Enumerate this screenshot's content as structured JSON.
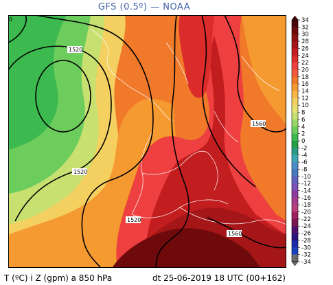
{
  "title": "GFS (0.5º) — NOAA",
  "corner_label": "0",
  "footer": {
    "variables": "T (ºC) i Z (gpm) a 850 hPa",
    "valid_time": "dt 25-06-2019 18 UTC (00+162)"
  },
  "isohypse_labels": [
    "1520",
    "1520",
    "1520",
    "1560",
    "1560"
  ],
  "colorbar": {
    "unit": "ºC",
    "ticks": [
      "34",
      "32",
      "30",
      "28",
      "26",
      "24",
      "22",
      "20",
      "18",
      "16",
      "14",
      "12",
      "10",
      "8",
      "6",
      "4",
      "2",
      "0",
      "-2",
      "-4",
      "-6",
      "-8",
      "-10",
      "-12",
      "-14",
      "-16",
      "-18",
      "-20",
      "-22",
      "-24",
      "-26",
      "-28",
      "-30",
      "-32",
      "-34"
    ],
    "colors": [
      "#4a0608",
      "#6e0a0c",
      "#8b1010",
      "#a51618",
      "#c21d1f",
      "#dc2b2b",
      "#ee4040",
      "#f35a3a",
      "#f07a2a",
      "#f59a30",
      "#f7b84a",
      "#f4d060",
      "#e8e070",
      "#c8e070",
      "#98d868",
      "#6ccc5c",
      "#3cba50",
      "#22a048",
      "#2e9a86",
      "#3aa8b4",
      "#4a8ec8",
      "#4a78c0",
      "#6060c0",
      "#7a50b8",
      "#8c3a9c",
      "#a83a8c",
      "#b8407a",
      "#a02060",
      "#7a1650",
      "#50106a",
      "#2a1480",
      "#1a2aa8",
      "#1a40c0",
      "#6c6c6c"
    ]
  }
}
